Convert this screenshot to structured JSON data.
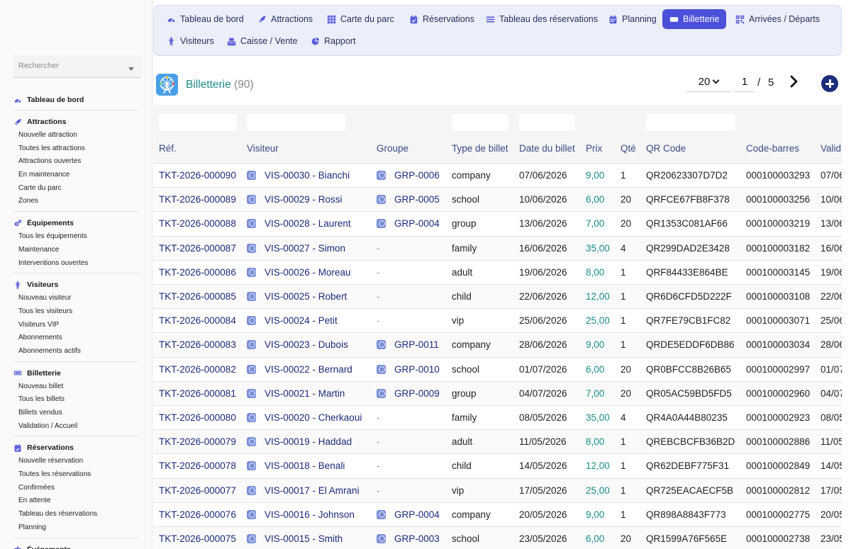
{
  "sidebar": {
    "search_placeholder": "Rechercher",
    "sections": [
      {
        "label": "Tableau de bord",
        "icon": "dashboard-icon",
        "items": []
      },
      {
        "label": "Attractions",
        "icon": "rocket-icon",
        "items": [
          "Nouvelle attraction",
          "Toutes les attractions",
          "Attractions ouvertes",
          "En maintenance",
          "Carte du parc",
          "Zones"
        ]
      },
      {
        "label": "Équipements",
        "icon": "gears-icon",
        "items": [
          "Tous les équipements",
          "Maintenance",
          "Interventions ouvertes"
        ]
      },
      {
        "label": "Visiteurs",
        "icon": "person-icon",
        "items": [
          "Nouveau visiteur",
          "Tous les visiteurs",
          "Visiteurs VIP",
          "Abonnements",
          "Abonnements actifs"
        ]
      },
      {
        "label": "Billetterie",
        "icon": "ticket-icon",
        "items": [
          "Nouveau billet",
          "Tous les billets",
          "Billets vendus",
          "Validation / Accueil"
        ]
      },
      {
        "label": "Réservations",
        "icon": "calendar-check-icon",
        "items": [
          "Nouvelle réservation",
          "Toutes les réservations",
          "Confirmées",
          "En attente",
          "Tableau des réservations",
          "Planning"
        ]
      },
      {
        "label": "Événements",
        "icon": "star-icon",
        "items": []
      }
    ]
  },
  "topnav": {
    "tabs": [
      {
        "label": "Tableau de bord",
        "icon": "dashboard-icon"
      },
      {
        "label": "Attractions",
        "icon": "rocket-icon"
      },
      {
        "label": "Carte du parc",
        "icon": "grid-icon"
      },
      {
        "label": "Réservations",
        "icon": "calendar-check-icon"
      },
      {
        "label": "Tableau des réservations",
        "icon": "list-icon"
      },
      {
        "label": "Planning",
        "icon": "calendar-icon"
      },
      {
        "label": "Billetterie",
        "icon": "ticket-icon",
        "active": true
      },
      {
        "label": "Arrivées / Départs",
        "icon": "qr-icon"
      },
      {
        "label": "Visiteurs",
        "icon": "person-icon"
      },
      {
        "label": "Caisse / Vente",
        "icon": "register-icon"
      },
      {
        "label": "Rapport",
        "icon": "pie-chart-icon"
      }
    ]
  },
  "header": {
    "title": "Billetterie",
    "count": "(90)",
    "per_page": "20",
    "page": "1",
    "page_sep": "/",
    "page_total": "5"
  },
  "table": {
    "columns": [
      "Réf.",
      "Visiteur",
      "Groupe",
      "Type de billet",
      "Date du billet",
      "Prix",
      "Qté",
      "QR Code",
      "Code-barres",
      "Valid"
    ],
    "rows": [
      {
        "ref": "TKT-2026-000090",
        "visitor": "VIS-00030 - Bianchi",
        "group": "GRP-0006",
        "type": "company",
        "date": "07/06/2026",
        "price": "9,00",
        "qty": "1",
        "qr": "QR20623307D7D2",
        "barcode": "000100003293",
        "valid": "07/06"
      },
      {
        "ref": "TKT-2026-000089",
        "visitor": "VIS-00029 - Rossi",
        "group": "GRP-0005",
        "type": "school",
        "date": "10/06/2026",
        "price": "6,00",
        "qty": "20",
        "qr": "QRFCE67FB8F378",
        "barcode": "000100003256",
        "valid": "10/06"
      },
      {
        "ref": "TKT-2026-000088",
        "visitor": "VIS-00028 - Laurent",
        "group": "GRP-0004",
        "type": "group",
        "date": "13/06/2026",
        "price": "7,00",
        "qty": "20",
        "qr": "QR1353C081AF66",
        "barcode": "000100003219",
        "valid": "13/06"
      },
      {
        "ref": "TKT-2026-000087",
        "visitor": "VIS-00027 - Simon",
        "group": "-",
        "type": "family",
        "date": "16/06/2026",
        "price": "35,00",
        "qty": "4",
        "qr": "QR299DAD2E3428",
        "barcode": "000100003182",
        "valid": "16/06"
      },
      {
        "ref": "TKT-2026-000086",
        "visitor": "VIS-00026 - Moreau",
        "group": "-",
        "type": "adult",
        "date": "19/06/2026",
        "price": "8,00",
        "qty": "1",
        "qr": "QRF84433E864BE",
        "barcode": "000100003145",
        "valid": "19/06"
      },
      {
        "ref": "TKT-2026-000085",
        "visitor": "VIS-00025 - Robert",
        "group": "-",
        "type": "child",
        "date": "22/06/2026",
        "price": "12,00",
        "qty": "1",
        "qr": "QR6D6CFD5D222F",
        "barcode": "000100003108",
        "valid": "22/06"
      },
      {
        "ref": "TKT-2026-000084",
        "visitor": "VIS-00024 - Petit",
        "group": "-",
        "type": "vip",
        "date": "25/06/2026",
        "price": "25,00",
        "qty": "1",
        "qr": "QR7FE79CB1FC82",
        "barcode": "000100003071",
        "valid": "25/06"
      },
      {
        "ref": "TKT-2026-000083",
        "visitor": "VIS-00023 - Dubois",
        "group": "GRP-0011",
        "type": "company",
        "date": "28/06/2026",
        "price": "9,00",
        "qty": "1",
        "qr": "QRDE5EDDF6DB86",
        "barcode": "000100003034",
        "valid": "28/06"
      },
      {
        "ref": "TKT-2026-000082",
        "visitor": "VIS-00022 - Bernard",
        "group": "GRP-0010",
        "type": "school",
        "date": "01/07/2026",
        "price": "6,00",
        "qty": "20",
        "qr": "QR0BFCC8B26B65",
        "barcode": "000100002997",
        "valid": "01/07"
      },
      {
        "ref": "TKT-2026-000081",
        "visitor": "VIS-00021 - Martin",
        "group": "GRP-0009",
        "type": "group",
        "date": "04/07/2026",
        "price": "7,00",
        "qty": "20",
        "qr": "QR05AC59BD5FD5",
        "barcode": "000100002960",
        "valid": "04/07"
      },
      {
        "ref": "TKT-2026-000080",
        "visitor": "VIS-00020 - Cherkaoui",
        "group": "-",
        "type": "family",
        "date": "08/05/2026",
        "price": "35,00",
        "qty": "4",
        "qr": "QR4A0A44B80235",
        "barcode": "000100002923",
        "valid": "08/05"
      },
      {
        "ref": "TKT-2026-000079",
        "visitor": "VIS-00019 - Haddad",
        "group": "-",
        "type": "adult",
        "date": "11/05/2026",
        "price": "8,00",
        "qty": "1",
        "qr": "QREBCBCFB36B2D",
        "barcode": "000100002886",
        "valid": "11/05"
      },
      {
        "ref": "TKT-2026-000078",
        "visitor": "VIS-00018 - Benali",
        "group": "-",
        "type": "child",
        "date": "14/05/2026",
        "price": "12,00",
        "qty": "1",
        "qr": "QR62DEBF775F31",
        "barcode": "000100002849",
        "valid": "14/05"
      },
      {
        "ref": "TKT-2026-000077",
        "visitor": "VIS-00017 - El Amrani",
        "group": "-",
        "type": "vip",
        "date": "17/05/2026",
        "price": "25,00",
        "qty": "1",
        "qr": "QR725EACAECF5B",
        "barcode": "000100002812",
        "valid": "17/05"
      },
      {
        "ref": "TKT-2026-000076",
        "visitor": "VIS-00016 - Johnson",
        "group": "GRP-0004",
        "type": "company",
        "date": "20/05/2026",
        "price": "9,00",
        "qty": "1",
        "qr": "QR898A8843F773",
        "barcode": "000100002775",
        "valid": "20/05"
      },
      {
        "ref": "TKT-2026-000075",
        "visitor": "VIS-00015 - Smith",
        "group": "GRP-0003",
        "type": "school",
        "date": "23/05/2026",
        "price": "6,00",
        "qty": "20",
        "qr": "QR1599A76F565E",
        "barcode": "000100002738",
        "valid": "23/05"
      }
    ]
  },
  "colors": {
    "accent": "#4a50d9",
    "link": "#1c2a78",
    "price": "#1b8a8a",
    "title": "#1f8a8a",
    "header_text": "#3a4a85"
  }
}
